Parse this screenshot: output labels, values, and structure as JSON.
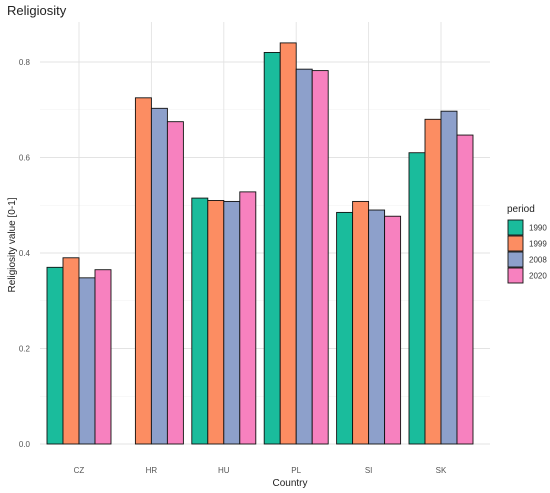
{
  "chart_data": {
    "type": "bar",
    "title": "Religiosity",
    "xlabel": "Country",
    "ylabel": "Religiosity value [0-1]",
    "categories": [
      "CZ",
      "HR",
      "HU",
      "PL",
      "SI",
      "SK"
    ],
    "ylim": [
      0,
      0.84
    ],
    "yticks": [
      0.0,
      0.2,
      0.4,
      0.6,
      0.8
    ],
    "ytick_labels": [
      "0.0",
      "0.2",
      "0.4",
      "0.6",
      "0.8"
    ],
    "grid": true,
    "legend": {
      "title": "period",
      "position": "right"
    },
    "series": [
      {
        "name": "1990",
        "color": "#1ABC9C",
        "values": [
          0.37,
          0.0,
          0.515,
          0.82,
          0.485,
          0.61
        ]
      },
      {
        "name": "1999",
        "color": "#FC8D62",
        "values": [
          0.39,
          0.725,
          0.51,
          0.84,
          0.508,
          0.68
        ]
      },
      {
        "name": "2008",
        "color": "#8DA0CB",
        "values": [
          0.348,
          0.703,
          0.508,
          0.785,
          0.49,
          0.697
        ]
      },
      {
        "name": "2020",
        "color": "#F781BF",
        "values": [
          0.365,
          0.675,
          0.528,
          0.782,
          0.477,
          0.647
        ]
      }
    ]
  }
}
